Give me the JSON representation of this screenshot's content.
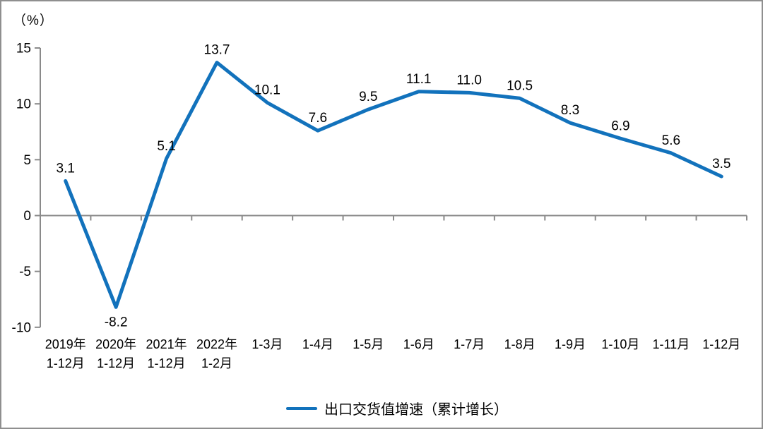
{
  "frame": {
    "background": "#ffffff",
    "border_color": "#8f8f8f"
  },
  "chart_data": {
    "type": "line",
    "title": "",
    "unit_label": "（%）",
    "categories": [
      [
        "2019年",
        "1-12月"
      ],
      [
        "2020年",
        "1-12月"
      ],
      [
        "2021年",
        "1-12月"
      ],
      [
        "2022年",
        "1-2月"
      ],
      [
        "1-3月"
      ],
      [
        "1-4月"
      ],
      [
        "1-5月"
      ],
      [
        "1-6月"
      ],
      [
        "1-7月"
      ],
      [
        "1-8月"
      ],
      [
        "1-9月"
      ],
      [
        "1-10月"
      ],
      [
        "1-11月"
      ],
      [
        "1-12月"
      ]
    ],
    "series": [
      {
        "name": "出口交货值增速（累计增长）",
        "values": [
          3.1,
          -8.2,
          5.1,
          13.7,
          10.1,
          7.6,
          9.5,
          11.1,
          11.0,
          10.5,
          8.3,
          6.9,
          5.6,
          3.5
        ],
        "labels": [
          "3.1",
          "-8.2",
          "5.1",
          "13.7",
          "10.1",
          "7.6",
          "9.5",
          "11.1",
          "11.0",
          "10.5",
          "8.3",
          "6.9",
          "5.6",
          "3.5"
        ],
        "color": "#1272BC"
      }
    ],
    "yticks": [
      15,
      10,
      5,
      0,
      -5,
      -10
    ],
    "ylim": [
      -10,
      15
    ],
    "grid": false,
    "legend_position": "bottom",
    "axis_color": "#8a8a8a",
    "label_color": "#000000"
  },
  "legend": {
    "label": "出口交货值增速（累计增长）"
  }
}
